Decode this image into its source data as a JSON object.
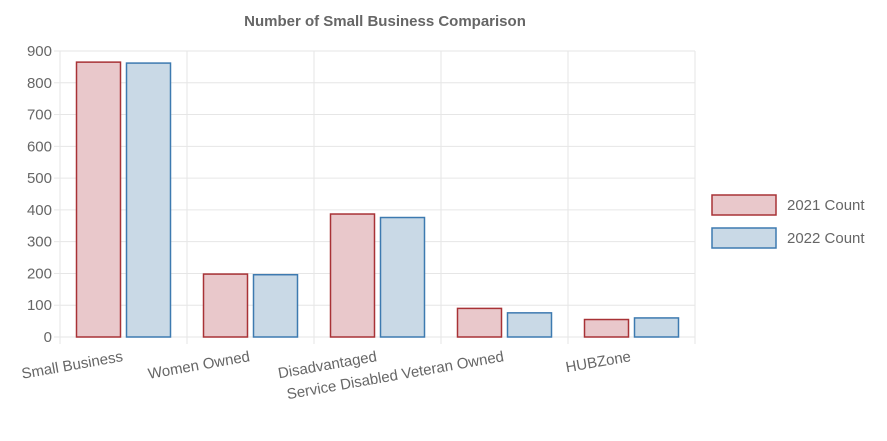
{
  "chart_data": {
    "type": "bar",
    "title": "Number of Small Business Comparison",
    "categories": [
      "Small Business",
      "Women Owned",
      "Disadvantaged",
      "Service Disabled Veteran Owned",
      "HUBZone"
    ],
    "series": [
      {
        "name": "2021 Count",
        "values": [
          865,
          198,
          387,
          90,
          55
        ],
        "fill": "#e9c8cb",
        "stroke": "#a83236"
      },
      {
        "name": "2022 Count",
        "values": [
          862,
          196,
          376,
          76,
          60
        ],
        "fill": "#c9d9e6",
        "stroke": "#3d7ab0"
      }
    ],
    "ylim": [
      0,
      900
    ],
    "yticks": [
      "0",
      "100",
      "200",
      "300",
      "400",
      "500",
      "600",
      "700",
      "800",
      "900"
    ],
    "grid": true,
    "legend": "right"
  }
}
